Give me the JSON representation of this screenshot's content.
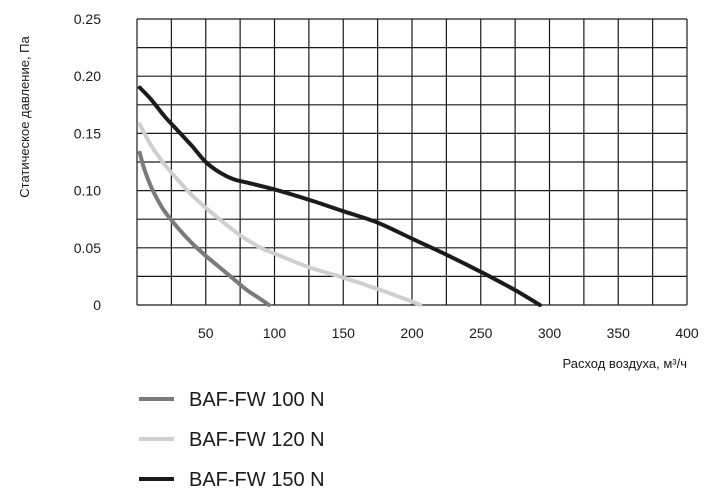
{
  "chart_data": {
    "type": "line",
    "title": "",
    "xlabel": "Расход воздуха, м³/ч",
    "ylabel": "Статическое давление, Па",
    "xlim": [
      0,
      400
    ],
    "ylim": [
      0,
      0.25
    ],
    "x_ticks": [
      50,
      100,
      150,
      200,
      250,
      300,
      350,
      400
    ],
    "x_tick_labels": [
      "50",
      "100",
      "150",
      "200",
      "250",
      "300",
      "350",
      "400"
    ],
    "y_ticks": [
      0,
      0.05,
      0.1,
      0.15,
      0.2,
      0.25
    ],
    "y_tick_labels": [
      "0",
      "0.05",
      "0.10",
      "0.15",
      "0.20",
      "0.25"
    ],
    "grid": true,
    "legend_position": "bottom-left",
    "series": [
      {
        "name": "BAF-FW 100 N",
        "color": "#7a7a7a",
        "x": [
          2,
          5,
          10,
          15,
          20,
          30,
          40,
          50,
          60,
          70,
          80,
          90,
          96
        ],
        "y": [
          0.133,
          0.12,
          0.104,
          0.092,
          0.082,
          0.067,
          0.054,
          0.043,
          0.033,
          0.023,
          0.013,
          0.005,
          0
        ]
      },
      {
        "name": "BAF-FW 120 N",
        "color": "#cfcfcf",
        "x": [
          2,
          10,
          20,
          30,
          40,
          50,
          60,
          75,
          90,
          100,
          125,
          150,
          175,
          200,
          206
        ],
        "y": [
          0.158,
          0.14,
          0.123,
          0.109,
          0.096,
          0.085,
          0.075,
          0.061,
          0.05,
          0.045,
          0.033,
          0.024,
          0.014,
          0.003,
          0
        ]
      },
      {
        "name": "BAF-FW 150 N",
        "color": "#1c1a1a",
        "x": [
          2,
          10,
          20,
          30,
          40,
          50,
          60,
          70,
          80,
          100,
          125,
          150,
          175,
          200,
          225,
          250,
          275,
          293
        ],
        "y": [
          0.19,
          0.18,
          0.165,
          0.152,
          0.139,
          0.125,
          0.116,
          0.11,
          0.107,
          0.101,
          0.092,
          0.082,
          0.072,
          0.058,
          0.044,
          0.029,
          0.013,
          0
        ]
      }
    ]
  }
}
